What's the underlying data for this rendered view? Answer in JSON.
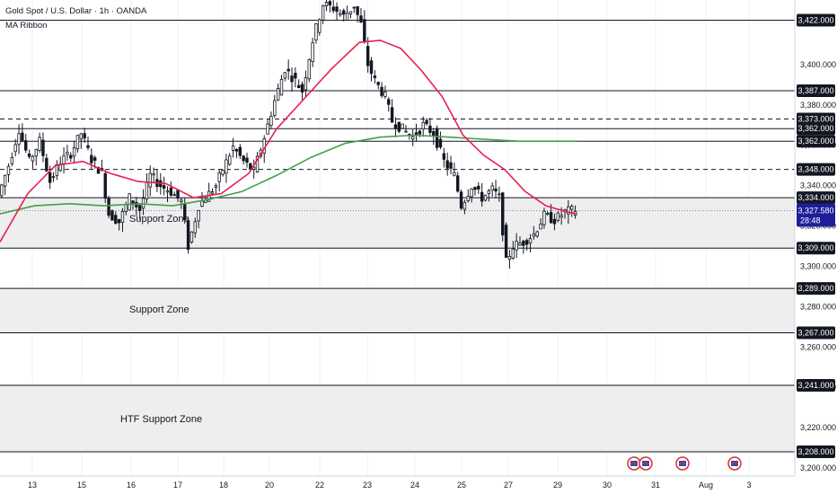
{
  "header": {
    "symbol_title": "Gold Spot / U.S. Dollar · 1h · OANDA",
    "indicator": "MA Ribbon"
  },
  "colors": {
    "up_candle": "#131722",
    "down_candle": "#131722",
    "ma_fast": "#e91e4f",
    "ma_slow": "#43a047",
    "level_line": "#131722",
    "zone_fill": "#e8e8e8",
    "price_badge": "#1e1e9a",
    "label_badge": "#131722"
  },
  "chart_data": {
    "type": "line",
    "title": "Gold Spot / U.S. Dollar · 1h · OANDA",
    "ylim": [
      3196,
      3432
    ],
    "y_ticks": [
      3200,
      3220,
      3240,
      3260,
      3280,
      3300,
      3320,
      3340,
      3360,
      3380,
      3400
    ],
    "x_ticks": [
      "13",
      "15",
      "16",
      "17",
      "18",
      "20",
      "22",
      "23",
      "24",
      "25",
      "27",
      "29",
      "30",
      "31",
      "Aug",
      "3"
    ],
    "current_price": "3,327.580",
    "countdown": "28:48",
    "levels": [
      {
        "value": "3,422.000",
        "style": "solid"
      },
      {
        "value": "3,387.000",
        "style": "solid"
      },
      {
        "value": "3,373.000",
        "style": "dashed"
      },
      {
        "value": "3,362.000",
        "style": "solid"
      },
      {
        "value": "3,362.000",
        "style": "solid"
      },
      {
        "value": "3,348.000",
        "style": "dashed"
      },
      {
        "value": "3,334.000",
        "style": "solid"
      },
      {
        "value": "3,309.000",
        "style": "solid"
      },
      {
        "value": "3,289.000",
        "style": "solid"
      },
      {
        "value": "3,267.000",
        "style": "solid"
      },
      {
        "value": "3,241.000",
        "style": "solid"
      },
      {
        "value": "3,208.000",
        "style": "solid"
      }
    ],
    "zones": [
      {
        "label": "Support Zone",
        "from": 3309,
        "to": 3334
      },
      {
        "label": "Support Zone",
        "from": 3267,
        "to": 3289
      },
      {
        "label": "HTF Support Zone",
        "from": 3208,
        "to": 3241
      }
    ],
    "price_path": [
      [
        0,
        3335
      ],
      [
        3,
        3350
      ],
      [
        6,
        3368
      ],
      [
        9,
        3352
      ],
      [
        12,
        3362
      ],
      [
        15,
        3342
      ],
      [
        18,
        3352
      ],
      [
        21,
        3356
      ],
      [
        24,
        3366
      ],
      [
        27,
        3353
      ],
      [
        30,
        3346
      ],
      [
        32,
        3326
      ],
      [
        35,
        3322
      ],
      [
        38,
        3334
      ],
      [
        41,
        3328
      ],
      [
        44,
        3345
      ],
      [
        47,
        3340
      ],
      [
        50,
        3337
      ],
      [
        53,
        3332
      ],
      [
        55,
        3310
      ],
      [
        58,
        3330
      ],
      [
        61,
        3336
      ],
      [
        63,
        3340
      ],
      [
        65,
        3348
      ],
      [
        68,
        3359
      ],
      [
        71,
        3352
      ],
      [
        74,
        3347
      ],
      [
        77,
        3364
      ],
      [
        80,
        3382
      ],
      [
        83,
        3398
      ],
      [
        86,
        3392
      ],
      [
        88,
        3387
      ],
      [
        91,
        3412
      ],
      [
        94,
        3430
      ],
      [
        97,
        3428
      ],
      [
        100,
        3424
      ],
      [
        103,
        3429
      ],
      [
        105,
        3420
      ],
      [
        107,
        3400
      ],
      [
        109,
        3392
      ],
      [
        112,
        3384
      ],
      [
        114,
        3372
      ],
      [
        117,
        3368
      ],
      [
        120,
        3364
      ],
      [
        123,
        3370
      ],
      [
        126,
        3366
      ],
      [
        129,
        3352
      ],
      [
        132,
        3345
      ],
      [
        134,
        3330
      ],
      [
        137,
        3340
      ],
      [
        140,
        3334
      ],
      [
        143,
        3338
      ],
      [
        145,
        3334
      ],
      [
        147,
        3302
      ],
      [
        149,
        3310
      ],
      [
        152,
        3312
      ],
      [
        155,
        3316
      ],
      [
        158,
        3325
      ],
      [
        161,
        3323
      ],
      [
        164,
        3327
      ],
      [
        167,
        3328
      ]
    ],
    "ma_fast_path": [
      [
        0,
        3312
      ],
      [
        8,
        3336
      ],
      [
        16,
        3350
      ],
      [
        24,
        3352
      ],
      [
        32,
        3346
      ],
      [
        40,
        3342
      ],
      [
        48,
        3341
      ],
      [
        56,
        3334
      ],
      [
        64,
        3336
      ],
      [
        72,
        3346
      ],
      [
        80,
        3368
      ],
      [
        88,
        3383
      ],
      [
        96,
        3398
      ],
      [
        104,
        3411
      ],
      [
        110,
        3412
      ],
      [
        116,
        3408
      ],
      [
        122,
        3397
      ],
      [
        128,
        3384
      ],
      [
        134,
        3365
      ],
      [
        140,
        3355
      ],
      [
        146,
        3348
      ],
      [
        152,
        3337
      ],
      [
        158,
        3330
      ],
      [
        164,
        3327
      ],
      [
        167,
        3326
      ]
    ],
    "ma_slow_path": [
      [
        0,
        3326
      ],
      [
        10,
        3330
      ],
      [
        20,
        3331
      ],
      [
        30,
        3330
      ],
      [
        40,
        3331
      ],
      [
        50,
        3330
      ],
      [
        60,
        3333
      ],
      [
        70,
        3337
      ],
      [
        80,
        3345
      ],
      [
        90,
        3354
      ],
      [
        100,
        3361
      ],
      [
        110,
        3364
      ],
      [
        120,
        3365
      ],
      [
        130,
        3364
      ],
      [
        140,
        3363
      ],
      [
        150,
        3362
      ],
      [
        167,
        3362
      ]
    ]
  }
}
